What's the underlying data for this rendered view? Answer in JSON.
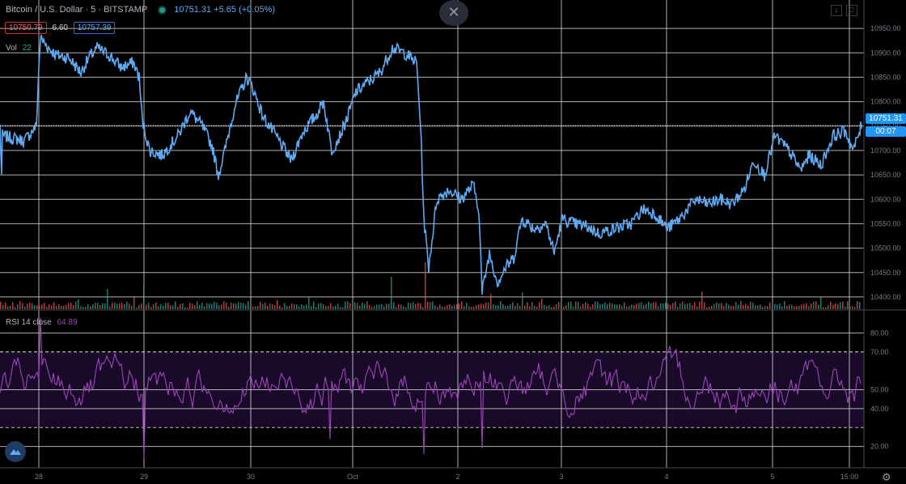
{
  "header": {
    "symbol": "Bitcoin / U.S. Dollar",
    "interval": "5",
    "exchange": "BITSTAMP",
    "last_price": "10751.31",
    "change": "+5.65 (+0.05%)"
  },
  "bid_ask": {
    "bid": "10750.79",
    "spread": "6.60",
    "ask": "10757.39"
  },
  "volume_legend": {
    "label": "Vol",
    "value": "22"
  },
  "rsi_legend": {
    "label": "RSI 14 close",
    "value": "64.89"
  },
  "price_axis": {
    "last_price_label": "10751.31",
    "countdown": "00:07"
  },
  "icons": {
    "close": "close-icon",
    "download": "download-icon",
    "fullscreen": "fullscreen-icon",
    "logo": "tradingview-logo-icon",
    "settings": "gear-icon"
  },
  "colors": {
    "price_line": "#5ea9f0",
    "rsi_line": "#9c46b7",
    "rsi_band": "#1a0a2a",
    "grid": "#cfcfcf",
    "volume_up": "#26a69a",
    "volume_down": "#ef5350"
  },
  "chart_data": [
    {
      "type": "line",
      "series": [
        {
          "name": "BTCUSD",
          "values_key": "price"
        }
      ],
      "x_ticks": [
        "28",
        "29",
        "30",
        "Oct",
        "2",
        "3",
        "4",
        "5",
        "15:00"
      ],
      "y_ticks": [
        10950,
        10900,
        10850,
        10800,
        10750,
        10700,
        10650,
        10600,
        10550,
        10500,
        10450,
        10400
      ],
      "ylim": [
        10375,
        10975
      ],
      "anchors": [
        [
          0,
          10750
        ],
        [
          2,
          10650
        ],
        [
          3,
          10730
        ],
        [
          30,
          10720
        ],
        [
          45,
          10750
        ],
        [
          48,
          10870
        ],
        [
          50,
          10930
        ],
        [
          60,
          10910
        ],
        [
          70,
          10895
        ],
        [
          85,
          10890
        ],
        [
          100,
          10860
        ],
        [
          110,
          10890
        ],
        [
          120,
          10910
        ],
        [
          135,
          10895
        ],
        [
          150,
          10870
        ],
        [
          165,
          10880
        ],
        [
          172,
          10850
        ],
        [
          176,
          10760
        ],
        [
          185,
          10700
        ],
        [
          200,
          10690
        ],
        [
          210,
          10710
        ],
        [
          220,
          10730
        ],
        [
          235,
          10780
        ],
        [
          250,
          10750
        ],
        [
          262,
          10710
        ],
        [
          270,
          10650
        ],
        [
          278,
          10700
        ],
        [
          290,
          10790
        ],
        [
          305,
          10850
        ],
        [
          312,
          10830
        ],
        [
          325,
          10770
        ],
        [
          345,
          10720
        ],
        [
          360,
          10680
        ],
        [
          375,
          10740
        ],
        [
          390,
          10770
        ],
        [
          400,
          10800
        ],
        [
          410,
          10700
        ],
        [
          420,
          10730
        ],
        [
          430,
          10770
        ],
        [
          440,
          10820
        ],
        [
          455,
          10840
        ],
        [
          470,
          10860
        ],
        [
          485,
          10910
        ],
        [
          500,
          10900
        ],
        [
          515,
          10880
        ],
        [
          520,
          10750
        ],
        [
          524,
          10560
        ],
        [
          530,
          10460
        ],
        [
          540,
          10600
        ],
        [
          555,
          10620
        ],
        [
          570,
          10600
        ],
        [
          585,
          10630
        ],
        [
          592,
          10580
        ],
        [
          596,
          10410
        ],
        [
          605,
          10490
        ],
        [
          615,
          10430
        ],
        [
          625,
          10460
        ],
        [
          635,
          10480
        ],
        [
          645,
          10560
        ],
        [
          660,
          10540
        ],
        [
          675,
          10550
        ],
        [
          685,
          10490
        ],
        [
          695,
          10560
        ],
        [
          710,
          10550
        ],
        [
          725,
          10545
        ],
        [
          740,
          10530
        ],
        [
          760,
          10540
        ],
        [
          780,
          10550
        ],
        [
          795,
          10580
        ],
        [
          810,
          10570
        ],
        [
          825,
          10540
        ],
        [
          840,
          10560
        ],
        [
          860,
          10600
        ],
        [
          875,
          10590
        ],
        [
          890,
          10600
        ],
        [
          905,
          10590
        ],
        [
          920,
          10620
        ],
        [
          932,
          10680
        ],
        [
          945,
          10650
        ],
        [
          958,
          10730
        ],
        [
          975,
          10700
        ],
        [
          990,
          10660
        ],
        [
          1000,
          10690
        ],
        [
          1015,
          10670
        ],
        [
          1030,
          10730
        ],
        [
          1045,
          10740
        ],
        [
          1055,
          10700
        ],
        [
          1065,
          10751
        ]
      ]
    },
    {
      "type": "line",
      "series": [
        {
          "name": "RSI 14 close",
          "values_key": "rsi"
        }
      ],
      "y_ticks": [
        80,
        70,
        50,
        40,
        20
      ],
      "ylim": [
        10,
        90
      ],
      "bands": {
        "upper": 70,
        "lower": 30
      }
    }
  ]
}
